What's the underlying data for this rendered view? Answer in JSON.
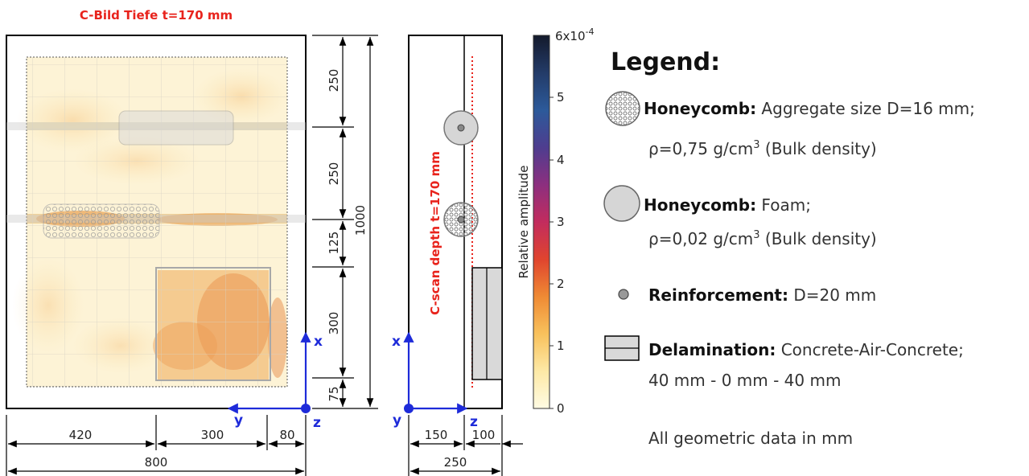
{
  "scan": {
    "title": "C-Bild Tiefe t=170 mm",
    "axis_x": "x",
    "axis_y": "y",
    "axis_z": "z"
  },
  "front_dims": {
    "v250a": "250",
    "v250b": "250",
    "v125": "125",
    "v300": "300",
    "v75": "75",
    "v1000": "1000",
    "h420": "420",
    "h300": "300",
    "h80": "80",
    "h800": "800"
  },
  "side_view": {
    "depth_label": "C-scan depth t=170 mm",
    "axis_x": "x",
    "axis_y": "y",
    "axis_z": "z",
    "h150": "150",
    "h100": "100",
    "h250": "250"
  },
  "colorbar": {
    "label": "Relative amplitude",
    "top_label_base": "6x10",
    "top_label_exp": "-4",
    "ticks": [
      "5",
      "4",
      "3",
      "2",
      "1",
      "0"
    ],
    "colors": [
      "#fffbe3",
      "#fde9a6",
      "#f8c15c",
      "#ef8a34",
      "#e0442e",
      "#c22c5e",
      "#8c2f7f",
      "#4e3d8f",
      "#2c5a9a",
      "#233b68",
      "#141a2c"
    ]
  },
  "legend": {
    "title": "Legend:",
    "items": [
      {
        "icon": "honeycomb-aggregate-icon",
        "bold": "Honeycomb:",
        "line1": " Aggregate size D=16 mm;",
        "line2_pre": "ρ=0,75 g/cm",
        "line2_sup": "3",
        "line2_post": " (Bulk density)"
      },
      {
        "icon": "honeycomb-foam-icon",
        "bold": "Honeycomb:",
        "line1": " Foam;",
        "line2_pre": "ρ=0,02 g/cm",
        "line2_sup": "3",
        "line2_post": " (Bulk density)"
      },
      {
        "icon": "reinforcement-icon",
        "bold": "Reinforcement:",
        "line1": " D=20 mm"
      },
      {
        "icon": "delamination-icon",
        "bold": "Delamination:",
        "line1": " Concrete-Air-Concrete;",
        "line2": "40 mm - 0 mm - 40 mm"
      }
    ],
    "note": "All geometric data in mm"
  }
}
